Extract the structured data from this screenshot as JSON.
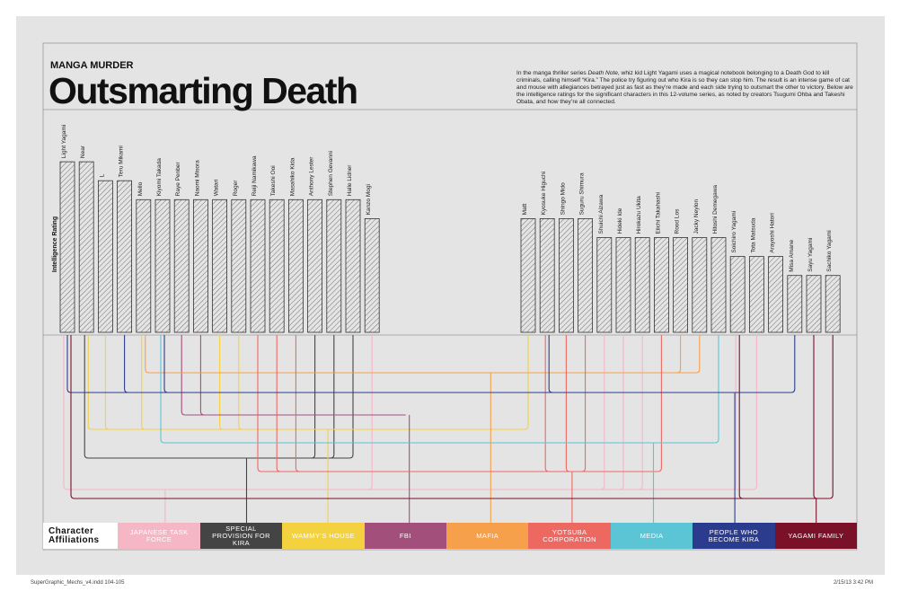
{
  "chart_data": {
    "type": "bar",
    "kicker": "MANGA MURDER",
    "title": "Outsmarting Death",
    "description": [
      "In the manga thriller series ",
      "Death Note",
      ", whiz kid Light Yagami uses a magical notebook belonging to a Death God to kill criminals, calling himself “Kira.” The police try figuring out who Kira is so they can stop him. The result is an intense game of cat and mouse with allegiances betrayed just as fast as they’re made and each side trying to outsmart the other to victory. Below are the intelligence ratings for the significant characters in this 12-volume series, as noted by creators Tsugumi Ohba and Takeshi Obata, and how they’re all connected."
    ],
    "y_label": "Intelligence Rating",
    "color": "#333333",
    "categories": [
      "Light Yagami",
      "Near",
      "L",
      "Teru Mikami",
      "Mello",
      "Kiyomi Takada",
      "Raye Penber",
      "Naomi Misora",
      "Watari",
      "Roger",
      "Reiji Namikawa",
      "Takeshi Ooi",
      "Masahiko Kida",
      "Anthony Lester",
      "Stephen Gevanni",
      "Halle Lidner",
      "Kanzo Mogi",
      "Matt",
      "Kyosuke Higuchi",
      "Shingo Mido",
      "Suguru Shimura",
      "Shuichi Aizawa",
      "Hideki Ide",
      "Hirokazu Ukita",
      "Eiichi Takahashi",
      "Rood Los",
      "Jacky Neylon",
      "Hitoshi Demegawa",
      "Soichiro Yagami",
      "Tota Matsuda",
      "Arayoshi Hatori",
      "Misa Amane",
      "Sayu Yagami",
      "Sachiko Yagami"
    ],
    "values": [
      9,
      9,
      8,
      8,
      7,
      7,
      7,
      7,
      7,
      7,
      7,
      7,
      7,
      7,
      7,
      7,
      6,
      6,
      6,
      6,
      6,
      5,
      5,
      5,
      5,
      5,
      5,
      5,
      4,
      4,
      4,
      3,
      3,
      3
    ],
    "legend_title": "Character Affiliations",
    "affiliations": [
      {
        "name": "JAPANESE TASK FORCE",
        "color": "#f5b6c6"
      },
      {
        "name": "SPECIAL PROVISION FOR KIRA",
        "color": "#444444"
      },
      {
        "name": "WAMMY’S HOUSE",
        "color": "#f4d23f"
      },
      {
        "name": "FBI",
        "color": "#a24f7c"
      },
      {
        "name": "MAFIA",
        "color": "#f6a04b"
      },
      {
        "name": "YOTSUBA CORPORATION",
        "color": "#ee6862"
      },
      {
        "name": "MEDIA",
        "color": "#5cc5d5"
      },
      {
        "name": "PEOPLE WHO BECOME KIRA",
        "color": "#2b3c8e"
      },
      {
        "name": "YAGAMI FAMILY",
        "color": "#7a1129"
      }
    ]
  },
  "footer": {
    "file": "SuperGraphic_Mechs_v4.indd  104-105",
    "date": "2/15/13   3:42 PM"
  }
}
